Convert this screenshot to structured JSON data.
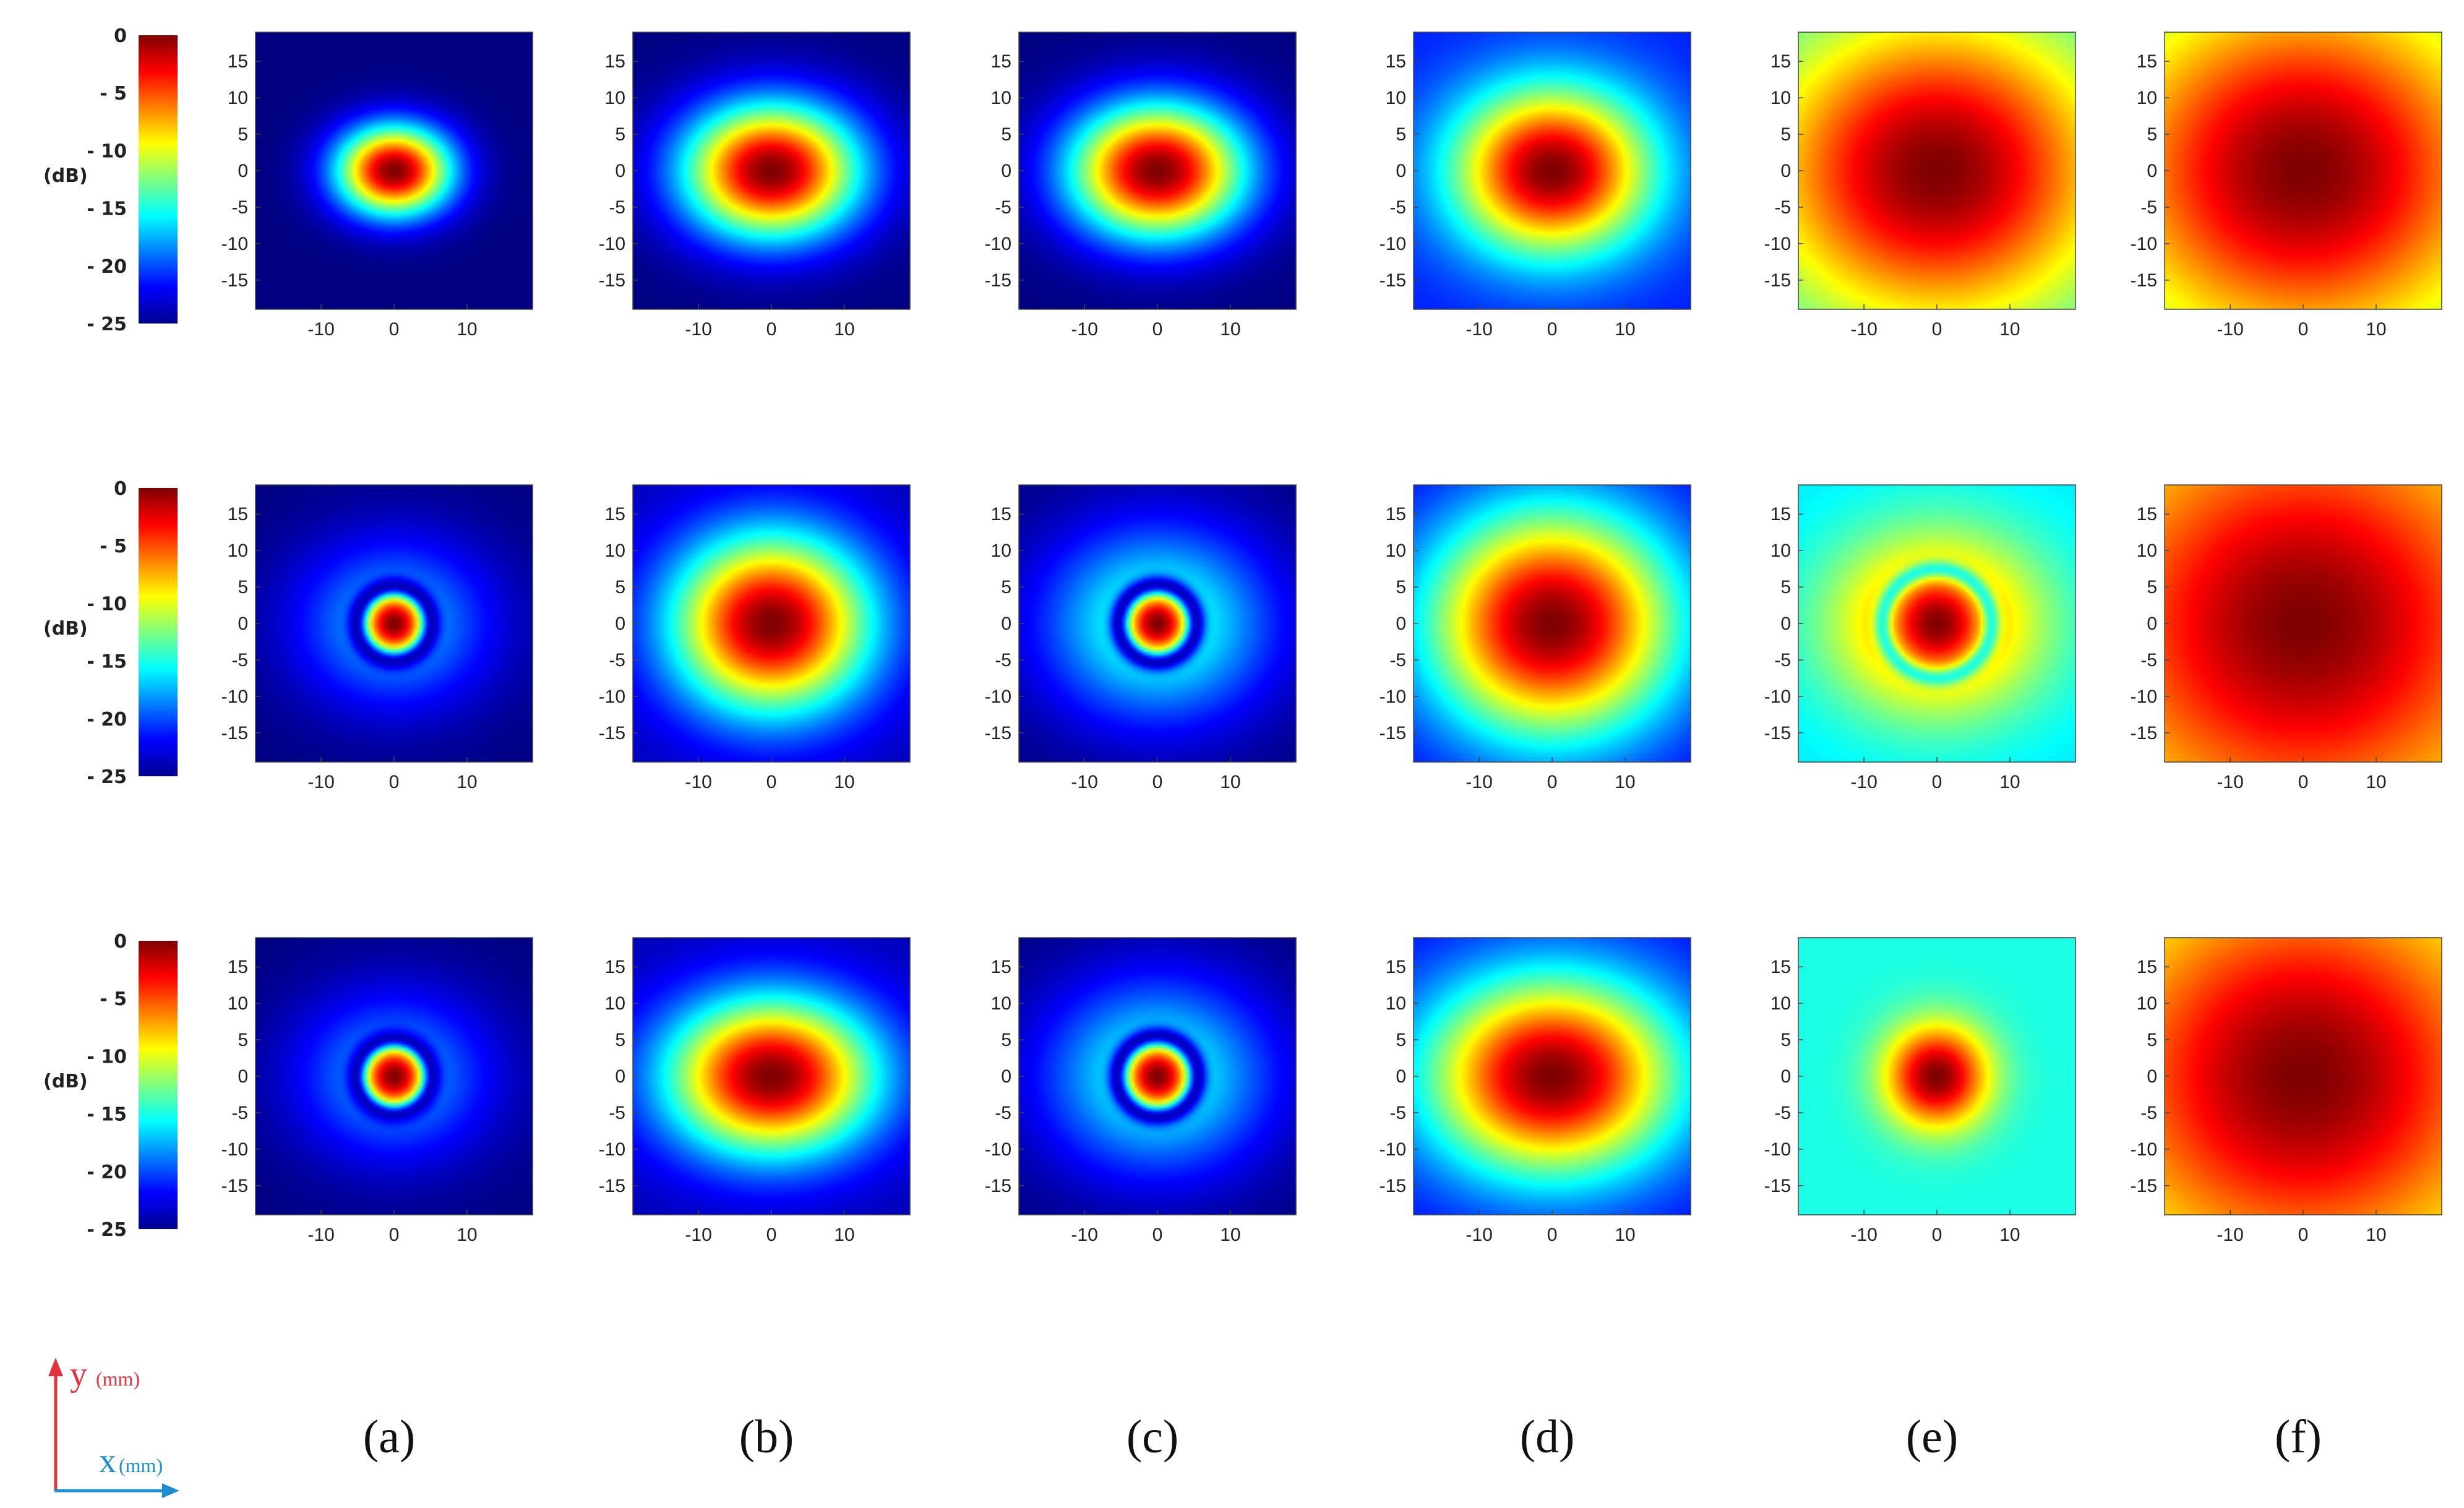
{
  "chart_data": {
    "type": "heatmap",
    "colormap": "jet",
    "colorbar": {
      "unit_label": "(dB)",
      "tick_labels": [
        "0",
        "- 5",
        "- 10",
        "- 15",
        "- 20",
        "- 25"
      ],
      "range": [
        -25,
        0
      ]
    },
    "axes": {
      "xlim": [
        -19,
        19
      ],
      "ylim": [
        -19,
        19
      ],
      "x_tick_labels": [
        "-10",
        "0",
        "10"
      ],
      "y_tick_labels": [
        "15",
        "10",
        "5",
        "0",
        "-5",
        "-10",
        "-15"
      ]
    },
    "column_labels": [
      "(a)",
      "(b)",
      "(c)",
      "(d)",
      "(e)",
      "(f)"
    ],
    "rows": [
      [
        {
          "sx": 5.5,
          "sy": 4.3,
          "floor": 0,
          "halo": 0.0,
          "halo_r": 0,
          "ring": 0
        },
        {
          "sx": 8.5,
          "sy": 6.5,
          "floor": 0,
          "halo": 0.0,
          "halo_r": 0,
          "ring": 0
        },
        {
          "sx": 8.5,
          "sy": 6.5,
          "floor": 0,
          "halo": 0.0,
          "halo_r": 0,
          "ring": 0
        },
        {
          "sx": 9.5,
          "sy": 8.0,
          "floor": 0.15,
          "halo": 0.0,
          "halo_r": 0,
          "ring": 0
        },
        {
          "sx": 17,
          "sy": 15,
          "floor": 0.35,
          "halo": 0.0,
          "halo_r": 0,
          "ring": 0
        },
        {
          "sx": 19,
          "sy": 17,
          "floor": 0.4,
          "halo": 0.0,
          "halo_r": 0,
          "ring": 0
        }
      ],
      [
        {
          "sx": 3.6,
          "sy": 3.6,
          "floor": 0,
          "halo": 0.32,
          "halo_r": 9.5,
          "ring": 5.2
        },
        {
          "sx": 9.5,
          "sy": 8.5,
          "floor": 0.05,
          "halo": 0.0,
          "halo_r": 0,
          "ring": 0
        },
        {
          "sx": 3.8,
          "sy": 3.8,
          "floor": 0,
          "halo": 0.45,
          "halo_r": 11,
          "ring": 5.4
        },
        {
          "sx": 12,
          "sy": 11,
          "floor": 0.1,
          "halo": 0.0,
          "halo_r": 0,
          "ring": 0
        },
        {
          "sx": 5.5,
          "sy": 5.5,
          "floor": 0.35,
          "halo": 0.72,
          "halo_r": 10.5,
          "ring": 7.5
        },
        {
          "sx": 19,
          "sy": 18,
          "floor": 0.55,
          "halo": 0.0,
          "halo_r": 0,
          "ring": 0
        }
      ],
      [
        {
          "sx": 3.8,
          "sy": 3.8,
          "floor": 0,
          "halo": 0.3,
          "halo_r": 9.5,
          "ring": 5.3
        },
        {
          "sx": 10,
          "sy": 7.5,
          "floor": 0.05,
          "halo": 0.0,
          "halo_r": 0,
          "ring": 0
        },
        {
          "sx": 4.0,
          "sy": 4.0,
          "floor": 0,
          "halo": 0.42,
          "halo_r": 11,
          "ring": 5.6
        },
        {
          "sx": 12,
          "sy": 9.5,
          "floor": 0.12,
          "halo": 0.0,
          "halo_r": 0,
          "ring": 0
        },
        {
          "sx": 5.0,
          "sy": 5.0,
          "floor": 0.4,
          "halo": 0.0,
          "halo_r": 0,
          "ring": 0
        },
        {
          "sx": 19,
          "sy": 18,
          "floor": 0.5,
          "halo": 0.0,
          "halo_r": 0,
          "ring": 0
        }
      ]
    ]
  },
  "axes_legend": {
    "y_label": "y",
    "y_unit": "(mm)",
    "x_label": "x",
    "x_unit": "(mm)",
    "y_color": "#e2323c",
    "x_color": "#1b8fd2"
  }
}
